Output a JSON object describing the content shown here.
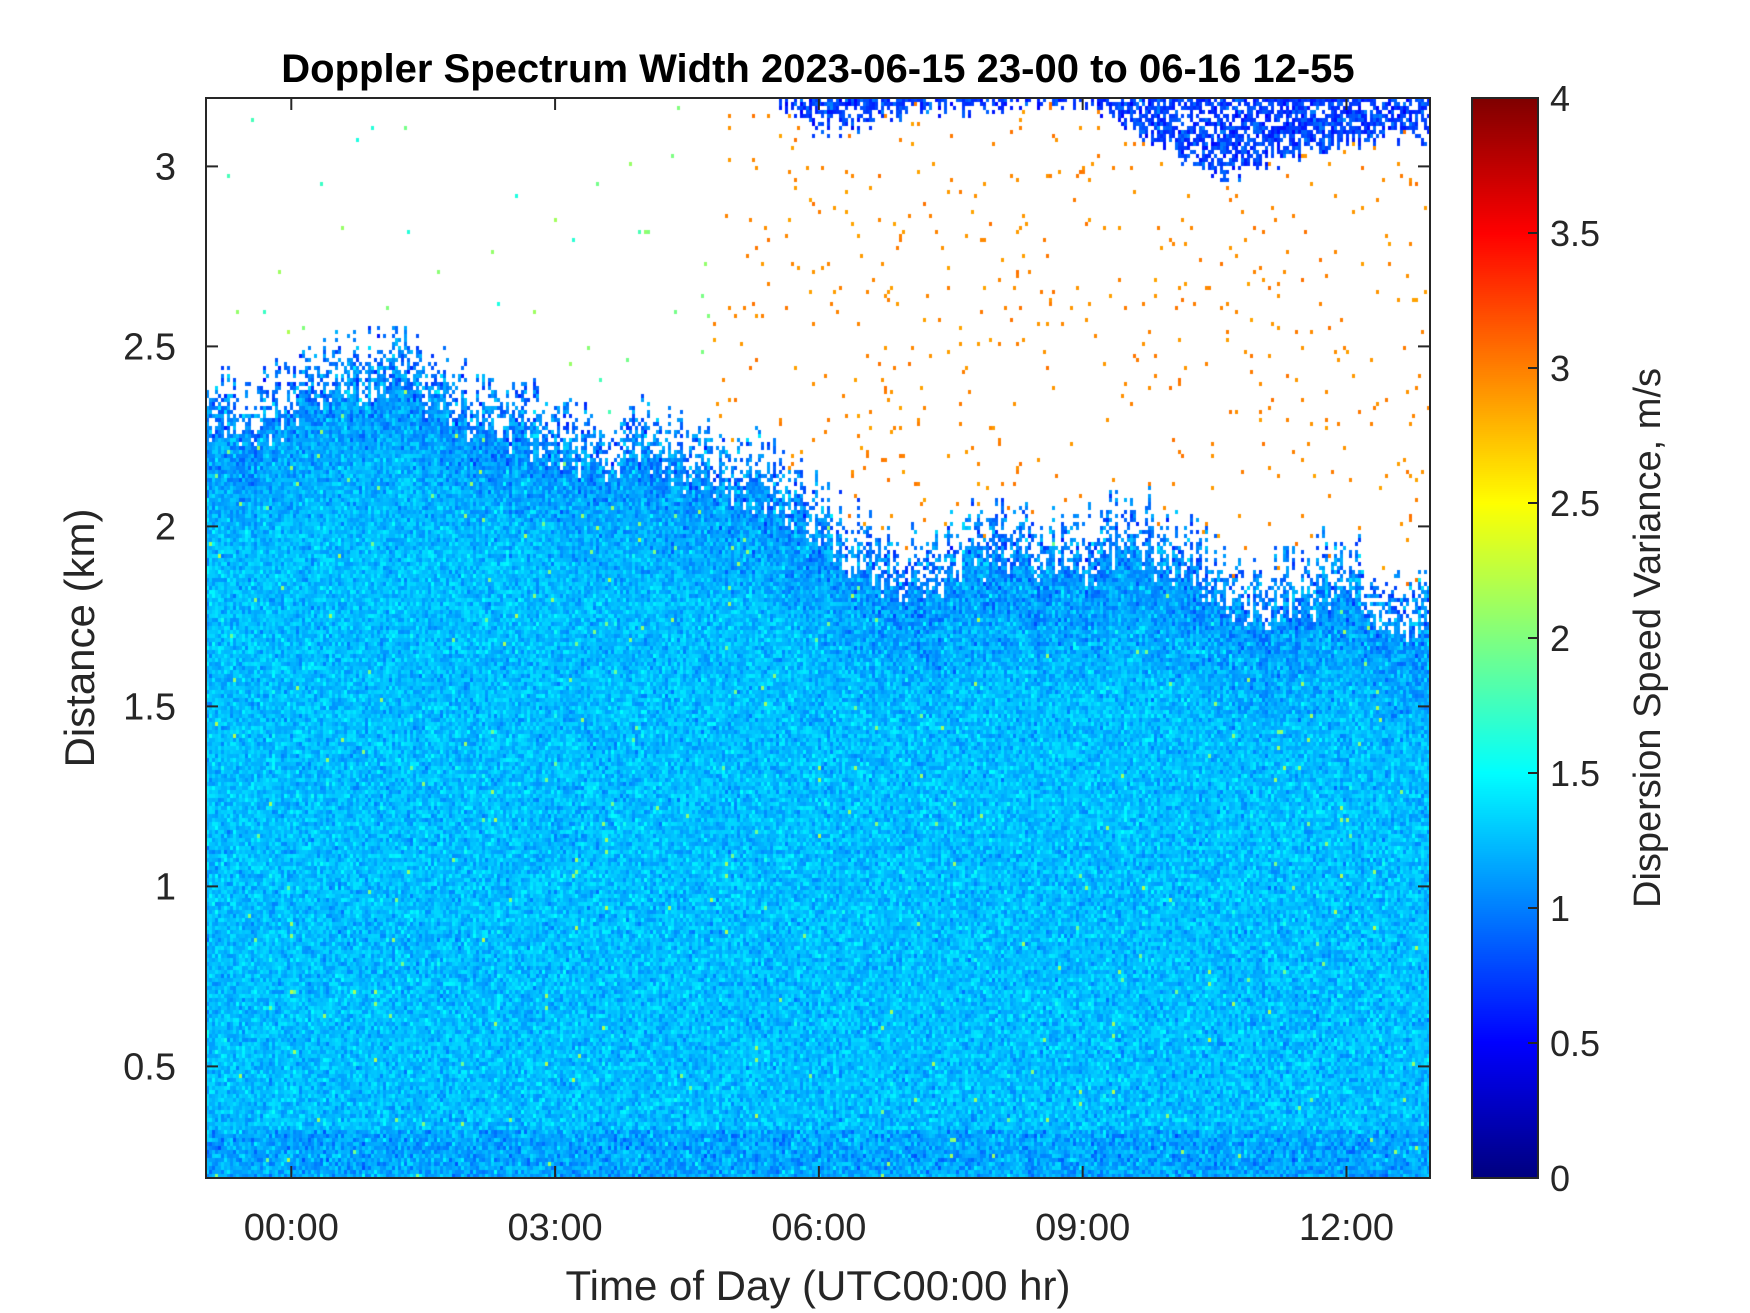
{
  "chart_data": {
    "type": "heatmap",
    "title": "Doppler Spectrum Width 2023-06-15 23-00 to 06-16 12-55",
    "xlabel": "Time of Day (UTC00:00 hr)",
    "ylabel": "Distance (km)",
    "colorbar_label": "Dispersion Speed Variance, m/s",
    "colormap": "jet",
    "x_unit": "hours",
    "xlim": [
      -0.97,
      12.95
    ],
    "ylim": [
      0.19,
      3.19
    ],
    "clim": [
      0,
      4
    ],
    "x_ticks": [
      {
        "value": 0,
        "label": "00:00"
      },
      {
        "value": 3,
        "label": "03:00"
      },
      {
        "value": 6,
        "label": "06:00"
      },
      {
        "value": 9,
        "label": "09:00"
      },
      {
        "value": 12,
        "label": "12:00"
      }
    ],
    "y_ticks": [
      {
        "value": 0.5,
        "label": "0.5"
      },
      {
        "value": 1,
        "label": "1"
      },
      {
        "value": 1.5,
        "label": "1.5"
      },
      {
        "value": 2,
        "label": "2"
      },
      {
        "value": 2.5,
        "label": "2.5"
      },
      {
        "value": 3,
        "label": "3"
      }
    ],
    "colorbar_ticks": [
      {
        "value": 0,
        "label": "0"
      },
      {
        "value": 0.5,
        "label": "0.5"
      },
      {
        "value": 1,
        "label": "1"
      },
      {
        "value": 1.5,
        "label": "1.5"
      },
      {
        "value": 2,
        "label": "2"
      },
      {
        "value": 2.5,
        "label": "2.5"
      },
      {
        "value": 3,
        "label": "3"
      },
      {
        "value": 3.5,
        "label": "3.5"
      },
      {
        "value": 4,
        "label": "4"
      }
    ],
    "signal_top_km": [
      {
        "x": -0.97,
        "y": 2.3
      },
      {
        "x": -0.5,
        "y": 2.25
      },
      {
        "x": 0.0,
        "y": 2.3
      },
      {
        "x": 0.5,
        "y": 2.38
      },
      {
        "x": 1.0,
        "y": 2.4
      },
      {
        "x": 1.5,
        "y": 2.35
      },
      {
        "x": 2.0,
        "y": 2.3
      },
      {
        "x": 2.5,
        "y": 2.25
      },
      {
        "x": 3.0,
        "y": 2.2
      },
      {
        "x": 3.5,
        "y": 2.15
      },
      {
        "x": 4.0,
        "y": 2.2
      },
      {
        "x": 4.5,
        "y": 2.15
      },
      {
        "x": 5.0,
        "y": 2.12
      },
      {
        "x": 5.5,
        "y": 2.08
      },
      {
        "x": 6.0,
        "y": 1.97
      },
      {
        "x": 6.5,
        "y": 1.88
      },
      {
        "x": 7.0,
        "y": 1.82
      },
      {
        "x": 7.5,
        "y": 1.88
      },
      {
        "x": 8.0,
        "y": 1.92
      },
      {
        "x": 8.5,
        "y": 1.9
      },
      {
        "x": 9.0,
        "y": 1.88
      },
      {
        "x": 9.5,
        "y": 1.95
      },
      {
        "x": 10.0,
        "y": 1.9
      },
      {
        "x": 10.5,
        "y": 1.8
      },
      {
        "x": 11.0,
        "y": 1.75
      },
      {
        "x": 11.5,
        "y": 1.78
      },
      {
        "x": 12.0,
        "y": 1.85
      },
      {
        "x": 12.5,
        "y": 1.75
      },
      {
        "x": 12.95,
        "y": 1.7
      }
    ],
    "upper_cloud_bottom_km": [
      {
        "x": 5.5,
        "y": 3.19
      },
      {
        "x": 6.0,
        "y": 3.1
      },
      {
        "x": 6.5,
        "y": 3.12
      },
      {
        "x": 7.0,
        "y": 3.15
      },
      {
        "x": 8.0,
        "y": 3.17
      },
      {
        "x": 9.0,
        "y": 3.19
      },
      {
        "x": 9.5,
        "y": 3.1
      },
      {
        "x": 10.0,
        "y": 3.05
      },
      {
        "x": 10.5,
        "y": 2.97
      },
      {
        "x": 11.0,
        "y": 3.0
      },
      {
        "x": 11.5,
        "y": 3.03
      },
      {
        "x": 12.0,
        "y": 3.07
      },
      {
        "x": 12.95,
        "y": 3.08
      }
    ],
    "typical_value_m_s": 1.25
  }
}
